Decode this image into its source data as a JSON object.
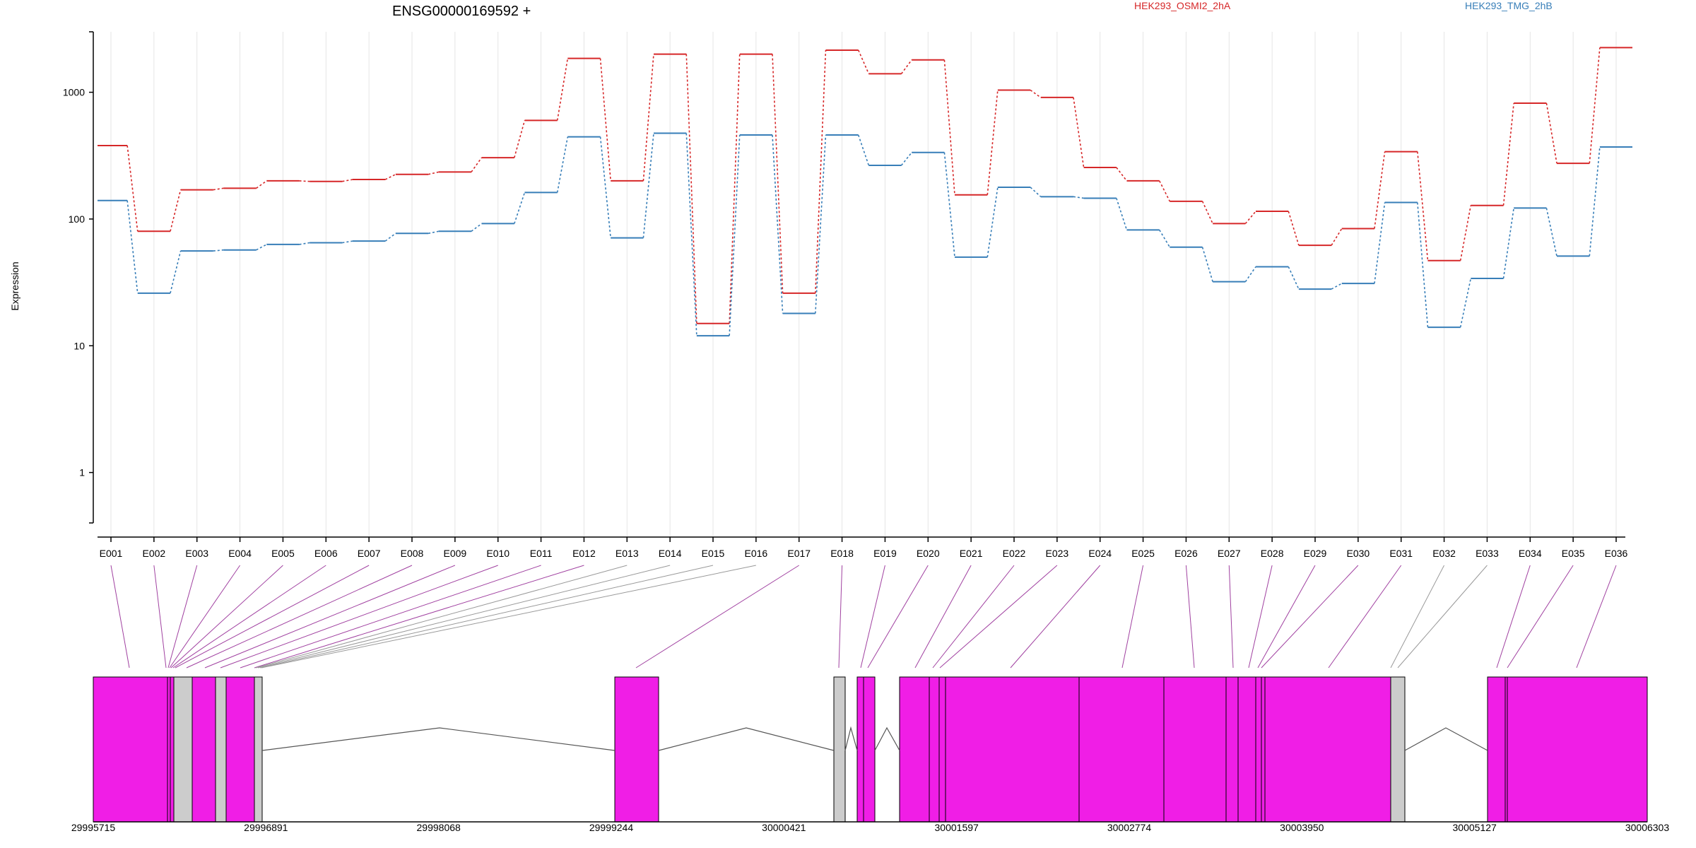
{
  "chart_data": {
    "type": "line",
    "title": "ENSG00000169592 +",
    "ylabel": "Expression",
    "yscale": "log",
    "ylim": [
      0.4,
      3000
    ],
    "yticks": [
      1,
      10,
      100,
      1000
    ],
    "ytick_labels": [
      "1",
      "10",
      "100",
      "1000"
    ],
    "categories": [
      "E001",
      "E002",
      "E003",
      "E004",
      "E005",
      "E006",
      "E007",
      "E008",
      "E009",
      "E010",
      "E011",
      "E012",
      "E013",
      "E014",
      "E015",
      "E016",
      "E017",
      "E018",
      "E019",
      "E020",
      "E021",
      "E022",
      "E023",
      "E024",
      "E025",
      "E026",
      "E027",
      "E028",
      "E029",
      "E030",
      "E031",
      "E032",
      "E033",
      "E034",
      "E035",
      "E036"
    ],
    "series": [
      {
        "name": "HEK293_OSMI2_2hA",
        "color": "#d62728",
        "values": [
          380,
          80,
          170,
          175,
          200,
          198,
          205,
          225,
          235,
          305,
          600,
          1850,
          200,
          2000,
          15,
          2000,
          26,
          2150,
          1400,
          1800,
          155,
          1040,
          910,
          255,
          200,
          138,
          92,
          115,
          62,
          84,
          340,
          47,
          128,
          820,
          275,
          2250
        ]
      },
      {
        "name": "HEK293_TMG_2hB",
        "color": "#377eb8",
        "values": [
          140,
          26,
          56,
          57,
          63,
          65,
          67,
          77,
          80,
          92,
          162,
          445,
          71,
          475,
          12,
          460,
          18,
          460,
          265,
          335,
          50,
          178,
          150,
          146,
          82,
          60,
          32,
          42,
          28,
          31,
          135,
          14,
          34,
          122,
          51,
          370
        ]
      }
    ],
    "gene_model": {
      "genomic_ticks": [
        "29995715",
        "29996891",
        "29998068",
        "29999244",
        "30000421",
        "30001597",
        "30002774",
        "30003950",
        "30005127",
        "30006303"
      ],
      "exon_fill_expressed": "#f01ee6",
      "exon_fill_other": "#cccccc"
    }
  }
}
